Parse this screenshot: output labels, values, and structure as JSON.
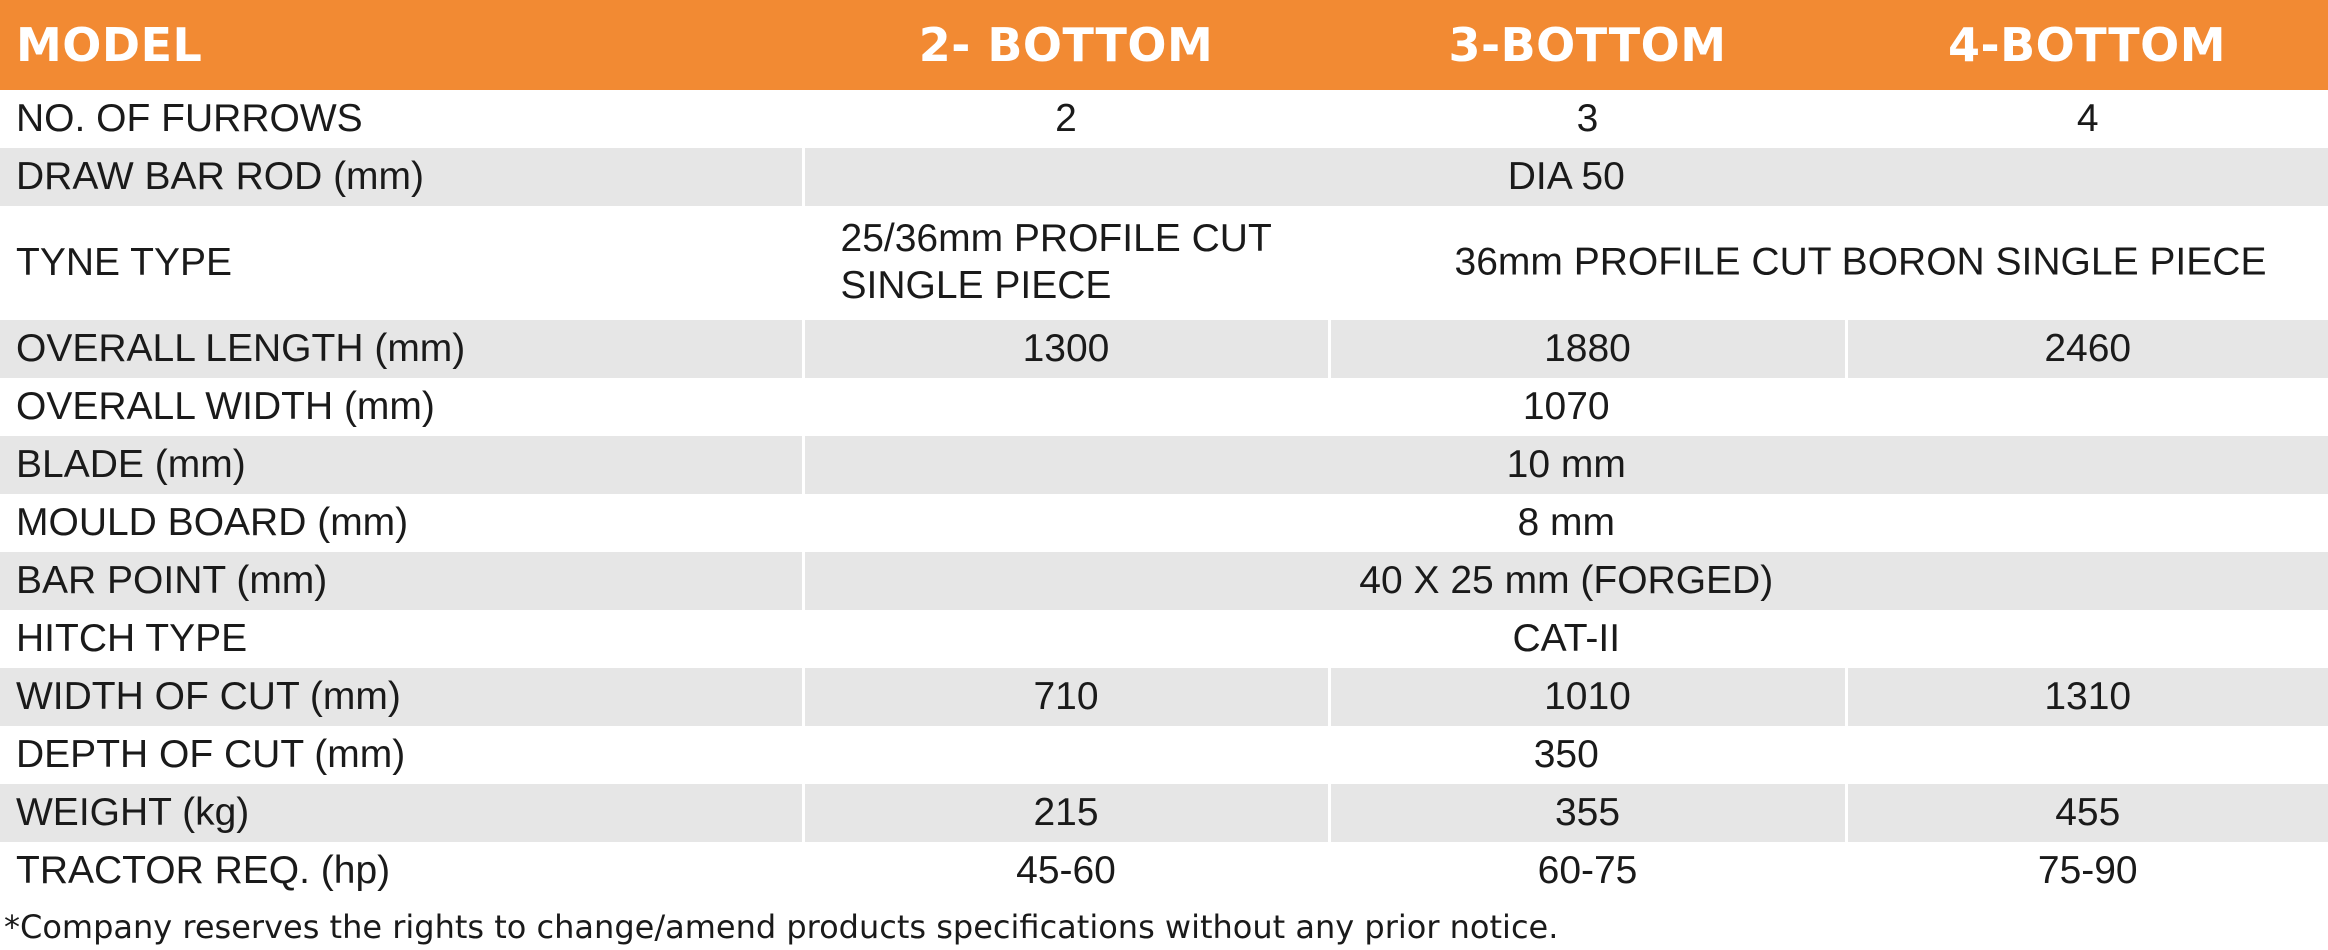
{
  "colors": {
    "header_bg": "#f28a33",
    "row_alt": "#e6e6e6",
    "text": "#1a1a1a"
  },
  "header": [
    "MODEL",
    "2- BOTTOM",
    "3-BOTTOM",
    "4-BOTTOM"
  ],
  "rows": {
    "furrows": {
      "label": "NO. OF FURROWS",
      "v2": "2",
      "v3": "3",
      "v4": "4"
    },
    "draw_bar": {
      "label": "DRAW BAR ROD (mm)",
      "value": "DIA 50"
    },
    "tyne": {
      "label": "TYNE TYPE",
      "v2": "25/36mm PROFILE CUT SINGLE PIECE",
      "v3": "36mm PROFILE CUT BORON SINGLE PIECE"
    },
    "length": {
      "label": "OVERALL LENGTH (mm)",
      "v2": "1300",
      "v3": "1880",
      "v4": "2460"
    },
    "width": {
      "label": "OVERALL WIDTH (mm)",
      "value": "1070"
    },
    "blade": {
      "label": "BLADE (mm)",
      "value": "10 mm"
    },
    "mould": {
      "label": "MOULD BOARD (mm)",
      "value": "8 mm"
    },
    "bar_point": {
      "label": "BAR POINT (mm)",
      "value": "40 X 25 mm (FORGED)"
    },
    "hitch": {
      "label": "HITCH TYPE",
      "value": "CAT-II"
    },
    "cut_width": {
      "label": "WIDTH OF CUT (mm)",
      "v2": "710",
      "v3": "1010",
      "v4": "1310"
    },
    "cut_depth": {
      "label": "DEPTH OF CUT (mm)",
      "value": "350"
    },
    "weight": {
      "label": "WEIGHT (kg)",
      "v2": "215",
      "v3": "355",
      "v4": "455"
    },
    "tractor": {
      "label": "TRACTOR REQ. (hp)",
      "v2": "45-60",
      "v3": "60-75",
      "v4": "75-90"
    }
  },
  "footnote": "*Company reserves the rights to change/amend products specifications without any prior notice."
}
